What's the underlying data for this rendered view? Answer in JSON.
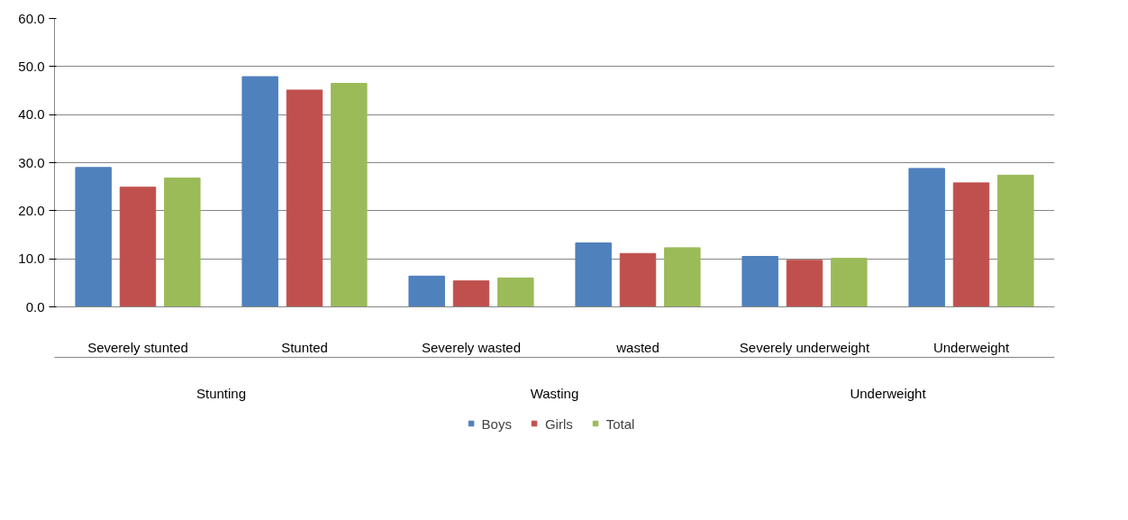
{
  "chart_data": {
    "type": "bar",
    "categories": [
      "Severely stunted",
      "Stunted",
      "Severely wasted",
      "wasted",
      "Severely underweight",
      "Underweight"
    ],
    "series": [
      {
        "name": "Boys",
        "color": "#4f81bd",
        "values": [
          29.0,
          47.9,
          6.4,
          13.3,
          10.5,
          28.8
        ]
      },
      {
        "name": "Girls",
        "color": "#c0504d",
        "values": [
          24.9,
          45.1,
          5.4,
          11.1,
          9.7,
          25.8
        ]
      },
      {
        "name": "Total",
        "color": "#9bbb59",
        "values": [
          26.8,
          46.5,
          6.0,
          12.3,
          10.1,
          27.4
        ]
      }
    ],
    "annotations": [
      "Stunting",
      "Wasting",
      "Underweight"
    ],
    "ylim": [
      0,
      60
    ],
    "yticks": [
      {
        "value": 0,
        "label": "0.0"
      },
      {
        "value": 10,
        "label": "10.0"
      },
      {
        "value": 20,
        "label": "20.0"
      },
      {
        "value": 30,
        "label": "30.0"
      },
      {
        "value": 40,
        "label": "40.0"
      },
      {
        "value": 50,
        "label": "50.0"
      },
      {
        "value": 60,
        "label": "60.0"
      }
    ],
    "grid": "y",
    "legend": "bottom"
  }
}
